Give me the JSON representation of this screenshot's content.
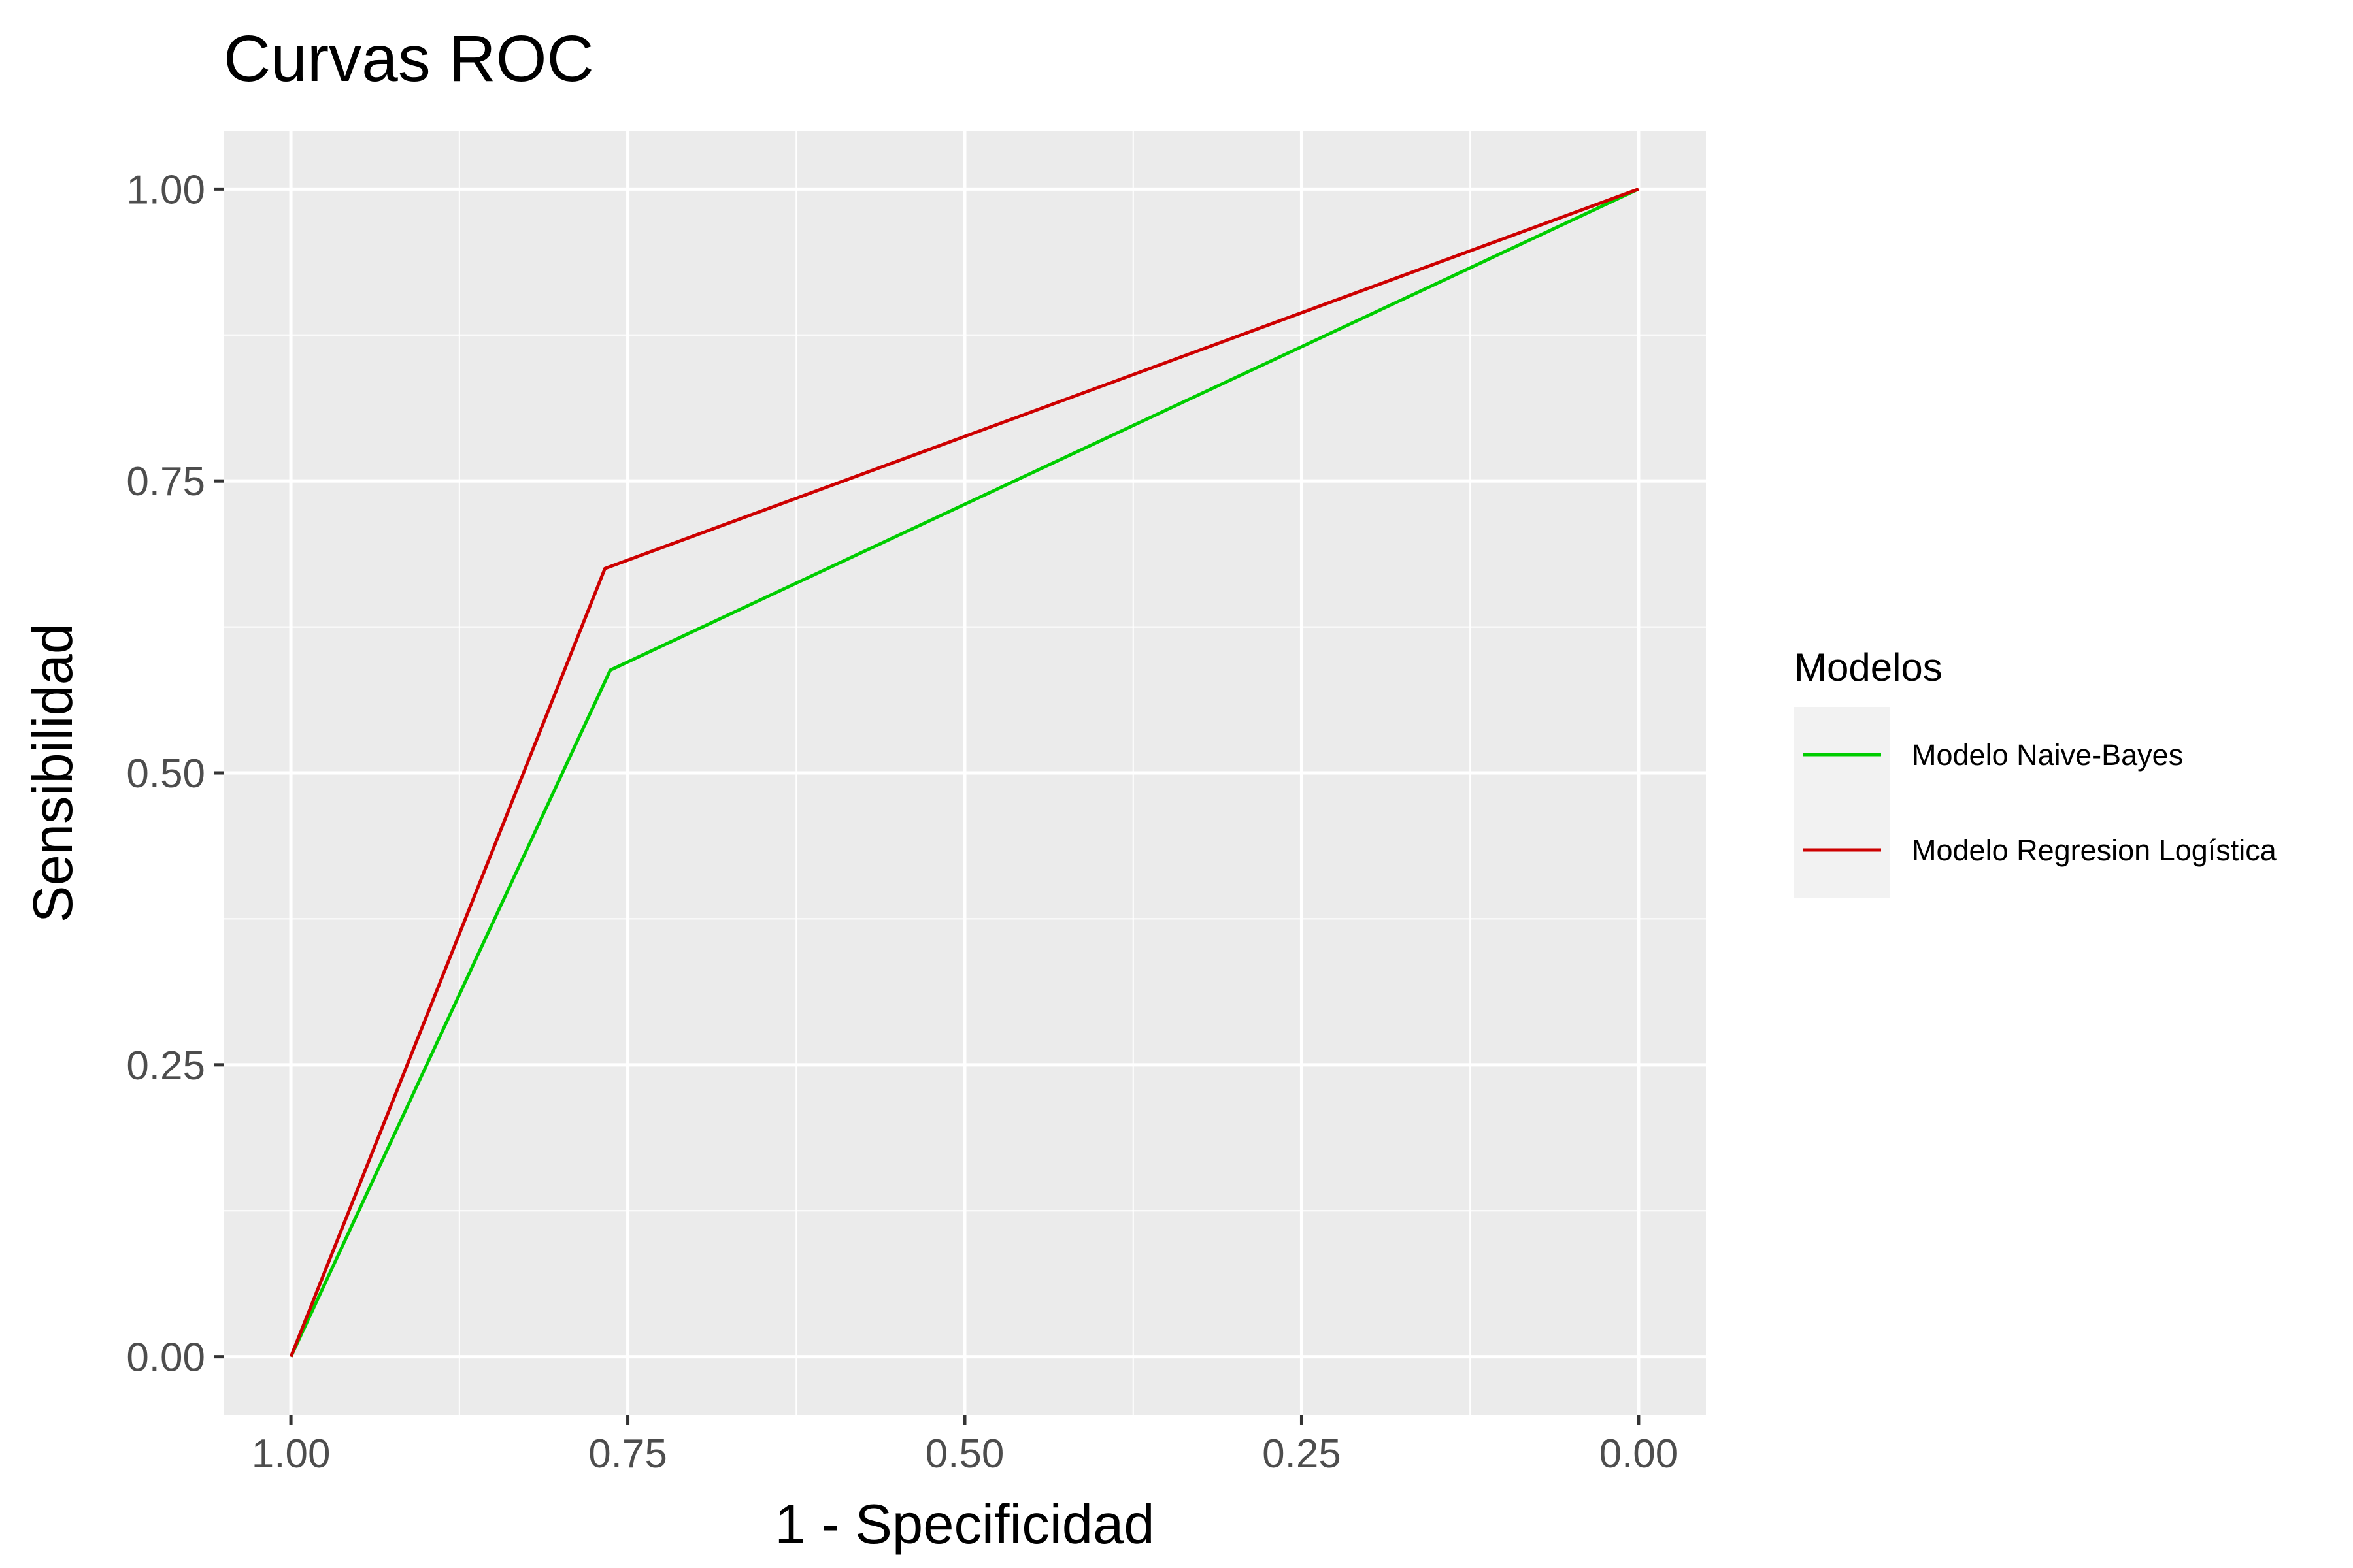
{
  "chart_data": {
    "type": "line",
    "title": "Curvas ROC",
    "xlabel": "1 - Specificidad",
    "ylabel": "Sensibilidad",
    "x_reversed": true,
    "xlim": [
      1.05,
      -0.05
    ],
    "ylim": [
      -0.05,
      1.05
    ],
    "x_ticks": [
      1.0,
      0.75,
      0.5,
      0.25,
      0.0
    ],
    "x_tick_labels": [
      "1.00",
      "0.75",
      "0.50",
      "0.25",
      "0.00"
    ],
    "y_ticks": [
      0.0,
      0.25,
      0.5,
      0.75,
      1.0
    ],
    "y_tick_labels": [
      "0.00",
      "0.25",
      "0.50",
      "0.75",
      "1.00"
    ],
    "grid": true,
    "legend": {
      "title": "Modelos",
      "position": "right"
    },
    "series": [
      {
        "name": "Modelo Naive-Bayes",
        "color": "#00cd00",
        "x": [
          1.0,
          0.763,
          0.0
        ],
        "y": [
          0.0,
          0.588,
          1.0
        ]
      },
      {
        "name": "Modelo Regresion Logística",
        "color": "#cd0000",
        "x": [
          1.0,
          0.767,
          0.0
        ],
        "y": [
          0.0,
          0.675,
          1.0
        ]
      }
    ]
  }
}
